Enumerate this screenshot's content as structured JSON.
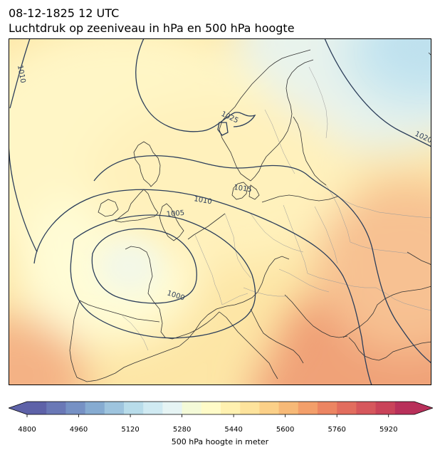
{
  "title_line1": "08-12-1825 12 UTC",
  "title_line2": "Luchtdruk op zeeniveau in hPa en 500 hPa hoogte",
  "isobar_labels": [
    "1010",
    "1025",
    "1020",
    "1015",
    "1010",
    "1005",
    "1000"
  ],
  "colorbar": {
    "label": "500 hPa hoogte in meter",
    "min": 4800,
    "max": 6000,
    "step": 40,
    "ticks": [
      "4800",
      "4960",
      "5120",
      "5280",
      "5440",
      "5600",
      "5760",
      "5920"
    ],
    "tick_values": [
      4800,
      4960,
      5120,
      5280,
      5440,
      5600,
      5760,
      5920
    ],
    "colors": [
      "#5e62a8",
      "#6a78b6",
      "#7691c4",
      "#86abd1",
      "#9ec4de",
      "#b8dcea",
      "#d0eaf2",
      "#e6f4f4",
      "#f4fad8",
      "#fffbc8",
      "#fff1b0",
      "#fde39c",
      "#fbd088",
      "#f7b977",
      "#f39f6a",
      "#ec8562",
      "#e26d5e",
      "#d6575c",
      "#c94359",
      "#b8305a"
    ],
    "extend": "both"
  },
  "colors": {
    "contour": "#2c3e5a",
    "coast": "#333333",
    "border": "#9a9a9a"
  }
}
